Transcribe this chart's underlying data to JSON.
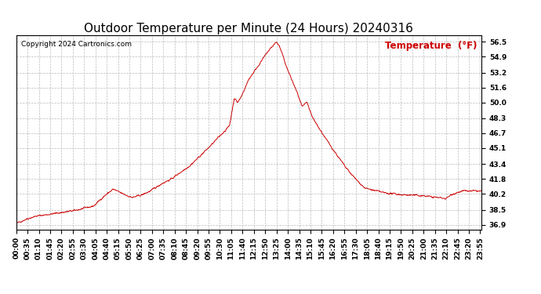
{
  "title": "Outdoor Temperature per Minute (24 Hours) 20240316",
  "copyright_text": "Copyright 2024 Cartronics.com",
  "legend_label": "Temperature  (°F)",
  "line_color": "#cc0000",
  "background_color": "#ffffff",
  "grid_color": "#bbbbbb",
  "yticks": [
    36.9,
    38.5,
    40.2,
    41.8,
    43.4,
    45.1,
    46.7,
    48.3,
    50.0,
    51.6,
    53.2,
    54.9,
    56.5
  ],
  "ylim": [
    36.4,
    57.2
  ],
  "xtick_labels": [
    "00:00",
    "00:35",
    "01:10",
    "01:45",
    "02:20",
    "02:55",
    "03:30",
    "04:05",
    "04:40",
    "05:15",
    "05:50",
    "06:25",
    "07:00",
    "07:35",
    "08:10",
    "08:45",
    "09:20",
    "09:55",
    "10:30",
    "11:05",
    "11:40",
    "12:15",
    "12:50",
    "13:25",
    "14:00",
    "14:35",
    "15:10",
    "15:45",
    "16:20",
    "16:55",
    "17:30",
    "18:05",
    "18:40",
    "19:15",
    "19:50",
    "20:25",
    "21:00",
    "21:35",
    "22:10",
    "22:45",
    "23:20",
    "23:55"
  ],
  "title_fontsize": 11,
  "tick_fontsize": 6.5,
  "legend_fontsize": 8.5,
  "copyright_fontsize": 6.5
}
